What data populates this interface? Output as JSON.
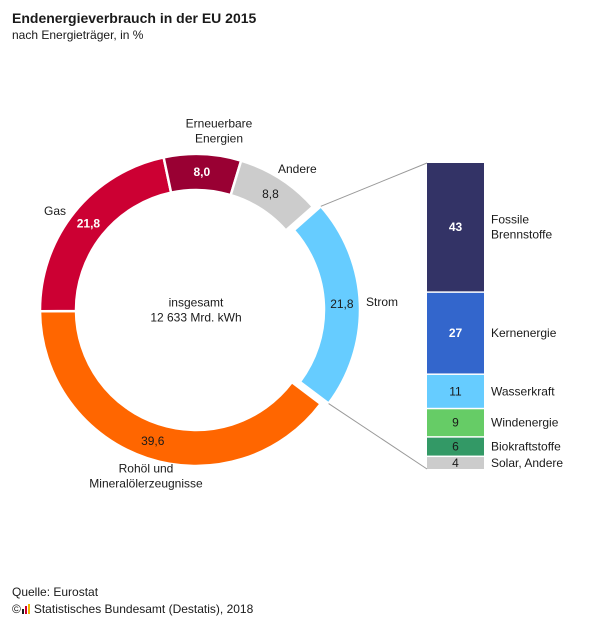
{
  "header": {
    "title": "Endenergieverbrauch in der EU 2015",
    "subtitle": "nach Energieträger, in %"
  },
  "footer": {
    "source": "Quelle: Eurostat",
    "copyright_symbol": "©",
    "publisher": "Statistisches Bundesamt (Destatis), 2018"
  },
  "chart_data": [
    {
      "type": "pie",
      "variant": "donut",
      "center_label": [
        "insgesamt",
        "12 633 Mrd. kWh"
      ],
      "slices": [
        {
          "label": "Strom",
          "value": 21.8,
          "value_label": "21,8",
          "color": "#66CCFF",
          "label_color": "#1a1a1a",
          "exploded": true
        },
        {
          "label": "Rohöl und Mineralölerzeugnisse",
          "label_lines": [
            "Rohöl und",
            "Mineralölerzeugnisse"
          ],
          "value": 39.6,
          "value_label": "39,6",
          "color": "#FF6600",
          "label_color": "#1a1a1a"
        },
        {
          "label": "Gas",
          "label_lines": [
            "Gas"
          ],
          "value": 21.8,
          "value_label": "21,8",
          "color": "#CC0033",
          "label_color": "#ffffff"
        },
        {
          "label": "Erneuerbare Energien",
          "label_lines": [
            "Erneuerbare",
            "Energien"
          ],
          "value": 8.0,
          "value_label": "8,0",
          "color": "#990033",
          "label_color": "#ffffff"
        },
        {
          "label": "Andere",
          "label_lines": [
            "Andere"
          ],
          "value": 8.8,
          "value_label": "8,8",
          "color": "#CCCCCC",
          "label_color": "#1a1a1a"
        }
      ]
    },
    {
      "type": "bar",
      "variant": "stacked-100",
      "title": "Strom",
      "segments": [
        {
          "label": "Fossile Brennstoffe",
          "label_lines": [
            "Fossile",
            "Brennstoffe"
          ],
          "value": 43,
          "value_label": "43",
          "color": "#333366",
          "label_color": "#ffffff"
        },
        {
          "label": "Kernenergie",
          "label_lines": [
            "Kernenergie"
          ],
          "value": 27,
          "value_label": "27",
          "color": "#3366CC",
          "label_color": "#ffffff"
        },
        {
          "label": "Wasserkraft",
          "label_lines": [
            "Wasserkraft"
          ],
          "value": 11,
          "value_label": "11",
          "color": "#66CCFF",
          "label_color": "#1a1a1a"
        },
        {
          "label": "Windenergie",
          "label_lines": [
            "Windenergie"
          ],
          "value": 9,
          "value_label": "9",
          "color": "#66CC66",
          "label_color": "#1a1a1a"
        },
        {
          "label": "Biokraftstoffe",
          "label_lines": [
            "Biokraftstoffe"
          ],
          "value": 6,
          "value_label": "6",
          "color": "#339966",
          "label_color": "#1a1a1a"
        },
        {
          "label": "Solar, Andere",
          "label_lines": [
            "Solar, Andere"
          ],
          "value": 4,
          "value_label": "4",
          "color": "#CCCCCC",
          "label_color": "#1a1a1a"
        }
      ]
    }
  ]
}
